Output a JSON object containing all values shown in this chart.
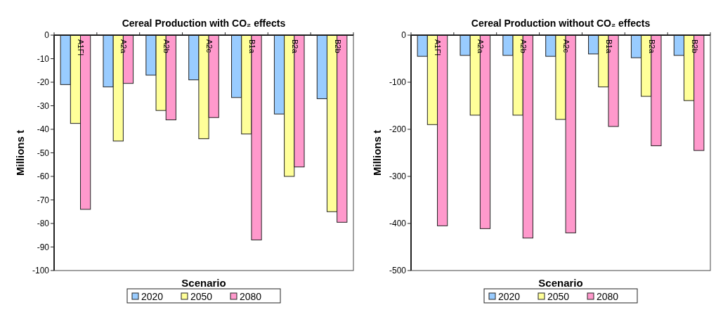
{
  "chart_data": [
    {
      "type": "bar",
      "title": "Cereal Production with CO₂ effects",
      "xlabel": "Scenario",
      "ylabel": "Millions t",
      "categories": [
        "A1FI",
        "A2a",
        "A2b",
        "A2c",
        "B1a",
        "B2a",
        "B2b"
      ],
      "ylim": [
        -100,
        0
      ],
      "yticks": [
        -100,
        -90,
        -80,
        -70,
        -60,
        -50,
        -40,
        -30,
        -20,
        -10,
        0
      ],
      "legend": "bottom",
      "grid": false,
      "series": [
        {
          "name": "2020",
          "color": "#99ccff",
          "values": [
            -21,
            -22,
            -17,
            -19,
            -26.5,
            -33.5,
            -27
          ]
        },
        {
          "name": "2050",
          "color": "#ffff99",
          "values": [
            -37.5,
            -45,
            -32,
            -44,
            -42,
            -60,
            -75
          ]
        },
        {
          "name": "2080",
          "color": "#ff99cc",
          "values": [
            -74,
            -20.5,
            -36,
            -35,
            -87,
            -56,
            -79.5
          ]
        }
      ]
    },
    {
      "type": "bar",
      "title": "Cereal Production without CO₂ effects",
      "xlabel": "Scenario",
      "ylabel": "Millions t",
      "categories": [
        "A1FI",
        "A2a",
        "A2b",
        "A2c",
        "B1a",
        "B2a",
        "B2b"
      ],
      "ylim": [
        -500,
        0
      ],
      "yticks": [
        -500,
        -400,
        -300,
        -200,
        -100,
        0
      ],
      "legend": "bottom",
      "grid": false,
      "series": [
        {
          "name": "2020",
          "color": "#99ccff",
          "values": [
            -45,
            -43,
            -43,
            -45,
            -40,
            -48,
            -43
          ]
        },
        {
          "name": "2050",
          "color": "#ffff99",
          "values": [
            -190,
            -170,
            -170,
            -179,
            -110,
            -130,
            -139
          ]
        },
        {
          "name": "2080",
          "color": "#ff99cc",
          "values": [
            -405,
            -411,
            -431,
            -420,
            -194,
            -235,
            -245
          ]
        }
      ]
    }
  ]
}
